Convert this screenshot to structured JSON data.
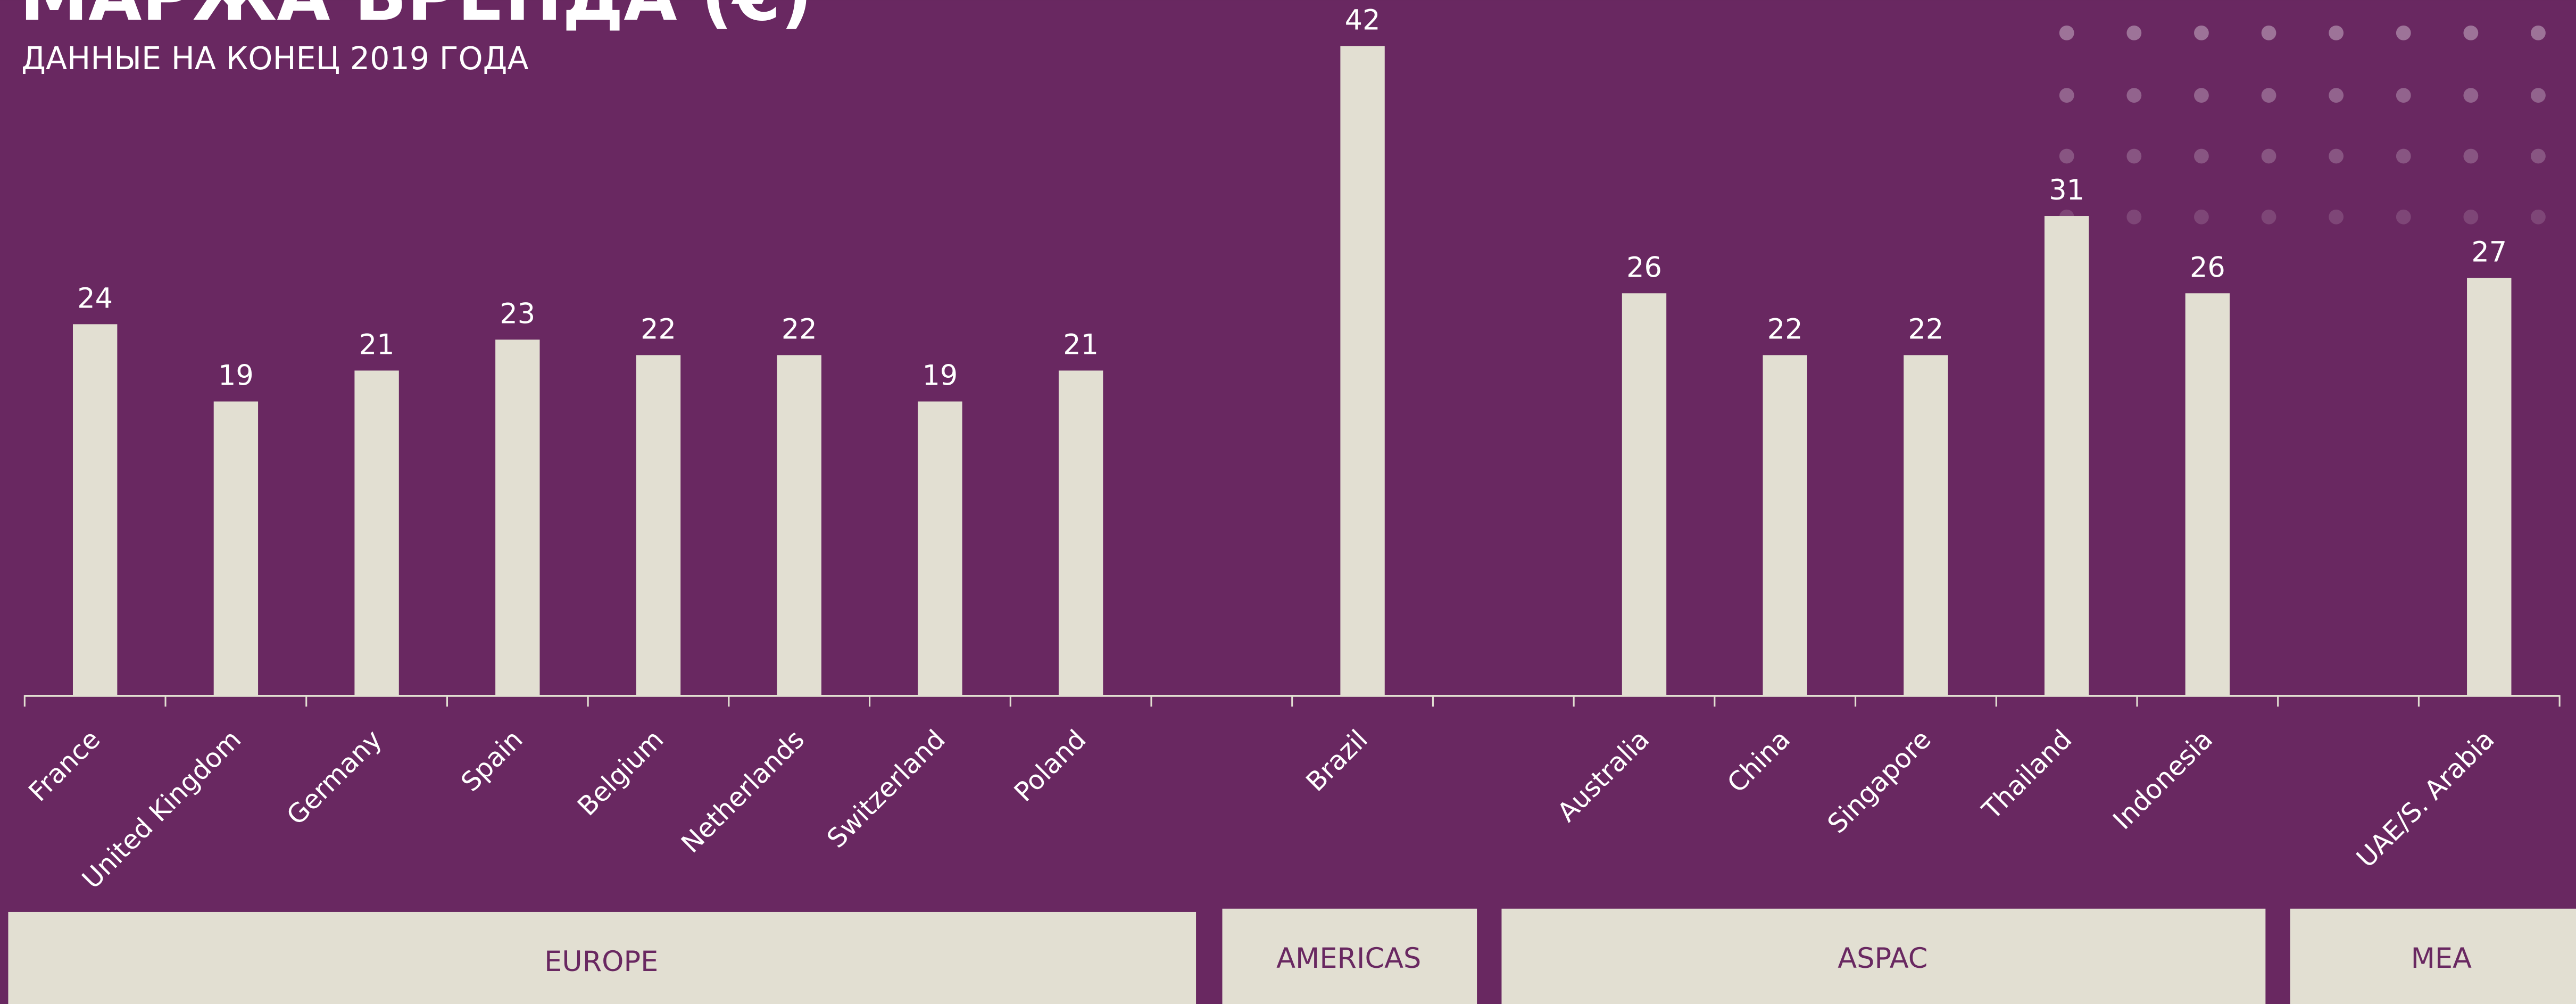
{
  "chart_data": {
    "type": "bar",
    "title": "МАРЖА БРЕНДА (€)",
    "subtitle": "ДАННЫЕ НА КОНЕЦ 2019 ГОДА",
    "categories": [
      "France",
      "United Kingdom",
      "Germany",
      "Spain",
      "Belgium",
      "Netherlands",
      "Switzerland",
      "Poland",
      null,
      "Brazil",
      null,
      "Australia",
      "China",
      "Singapore",
      "Thailand",
      "Indonesia",
      null,
      "UAE/S. Arabia"
    ],
    "values": [
      24,
      19,
      21,
      23,
      22,
      22,
      19,
      21,
      null,
      42,
      null,
      26,
      22,
      22,
      31,
      26,
      null,
      27
    ],
    "color": "#e2dfd2",
    "ylim": [
      0,
      42
    ],
    "groups": [
      "EUROPE",
      "AMERICAS",
      "ASPAC",
      "MEA"
    ]
  }
}
